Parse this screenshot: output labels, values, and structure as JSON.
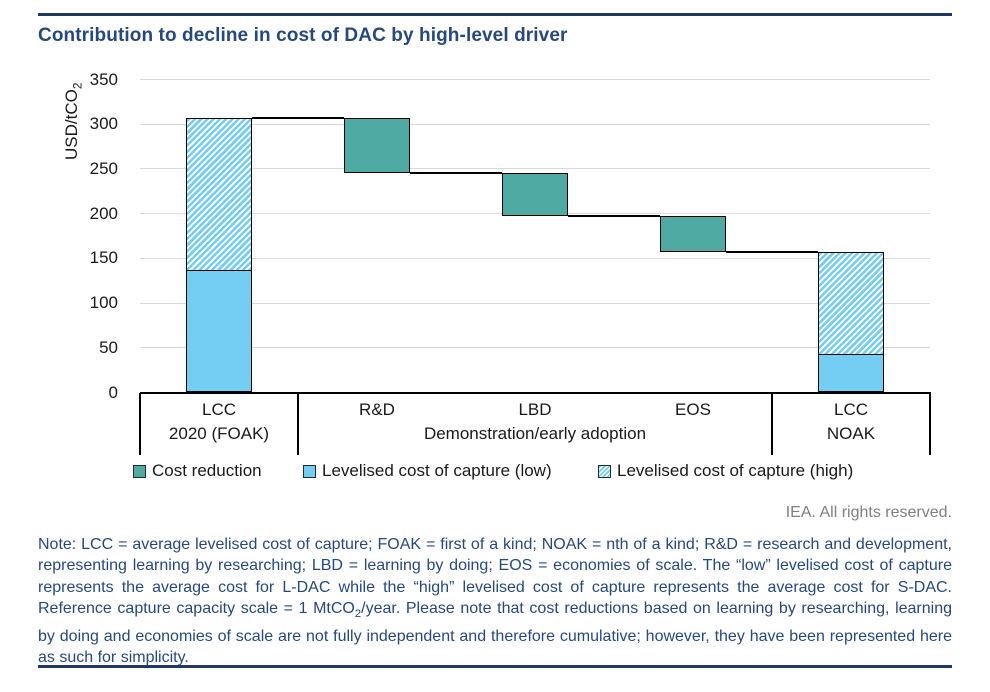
{
  "page": {
    "title": "Contribution to decline in cost of DAC by high-level driver",
    "copyright": "IEA. All rights reserved.",
    "note": {
      "p1": "Note: LCC = average levelised cost of capture; FOAK = first of a kind; NOAK = nth of a kind; R&D = research and development, representing learning by researching; LBD = learning by doing; EOS = economies of scale. The “low” levelised cost of capture represents the average cost for L-DAC while the “high” levelised cost of capture represents the average cost for S-DAC. Reference capture capacity scale = 1 MtCO",
      "sub": "2",
      "p2": "/year. Please note that cost reductions based on learning by researching, learning by doing and economies of scale are not fully independent and therefore cumulative; however, they have been represented here as such for simplicity."
    }
  },
  "colors": {
    "navy_rule": "#1f3864",
    "navy_text": "#26497c",
    "teal": "#4eaaa2",
    "blue": "#74cef4",
    "grid": "#d9d9d9",
    "gray_text": "#808080",
    "line_black": "#000000",
    "text_black": "#1a1a1a"
  },
  "chart_data": {
    "type": "waterfall",
    "title": "Contribution to decline in cost of DAC by high-level driver",
    "ylabel": {
      "base": "USD/tCO",
      "sub": "2"
    },
    "ylim": [
      0,
      350
    ],
    "ytick_step": 50,
    "yticks": [
      0,
      50,
      100,
      150,
      200,
      250,
      300,
      350
    ],
    "grid": true,
    "legend_position": "bottom",
    "columns": [
      {
        "label": "LCC",
        "kind": "stack",
        "low": 137,
        "high": 307
      },
      {
        "label": "R&D",
        "kind": "reduction",
        "from": 307,
        "to": 245
      },
      {
        "label": "LBD",
        "kind": "reduction",
        "from": 245,
        "to": 197
      },
      {
        "label": "EOS",
        "kind": "reduction",
        "from": 197,
        "to": 157
      },
      {
        "label": "LCC",
        "kind": "stack",
        "low": 43,
        "high": 157
      }
    ],
    "groups": [
      {
        "label": "2020 (FOAK)",
        "start": 0,
        "end": 0
      },
      {
        "label": "Demonstration/early adoption",
        "start": 1,
        "end": 3
      },
      {
        "label": "NOAK",
        "start": 4,
        "end": 4
      }
    ],
    "legend": [
      {
        "label": "Cost reduction",
        "swatch": "teal"
      },
      {
        "label": "Levelised cost of capture (low)",
        "swatch": "blue"
      },
      {
        "label": "Levelised cost of capture (high)",
        "swatch": "hatch"
      }
    ]
  }
}
